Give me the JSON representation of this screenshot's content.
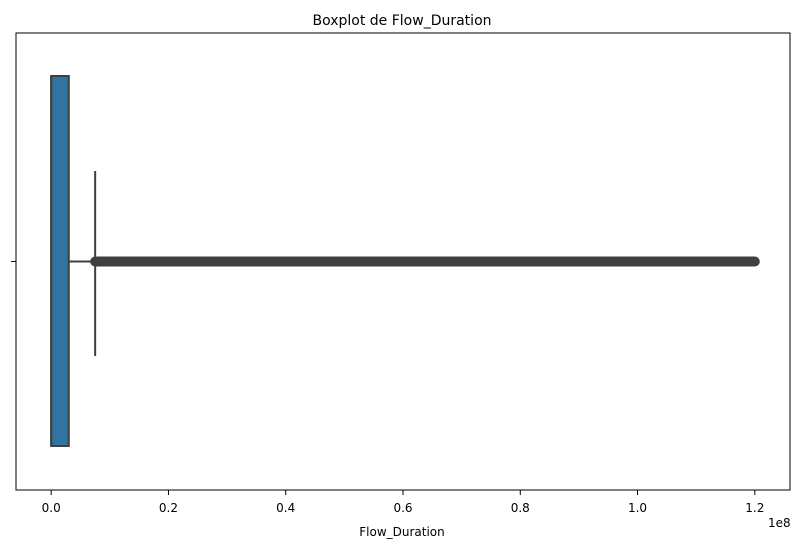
{
  "chart_data": {
    "type": "boxplot",
    "title": "Boxplot de Flow_Duration",
    "xlabel": "Flow_Duration",
    "ylabel": "",
    "x_offset_label": "1e8",
    "x_scale_multiplier": 100000000,
    "xlim": [
      -6000000,
      126000000
    ],
    "xticks": [
      0,
      0.2,
      0.4,
      0.6,
      0.8,
      1.0,
      1.2
    ],
    "xtick_labels": [
      "0.0",
      "0.2",
      "0.4",
      "0.6",
      "0.8",
      "1.0",
      "1.2"
    ],
    "grid": false,
    "box": {
      "min_whisker": 0,
      "q1": 0,
      "median": 0,
      "q3": 3000000,
      "max_whisker": 7500000,
      "outlier_range": [
        7500000,
        120000000
      ],
      "color": "#3274a1",
      "line_color": "#3f3f3f"
    }
  }
}
